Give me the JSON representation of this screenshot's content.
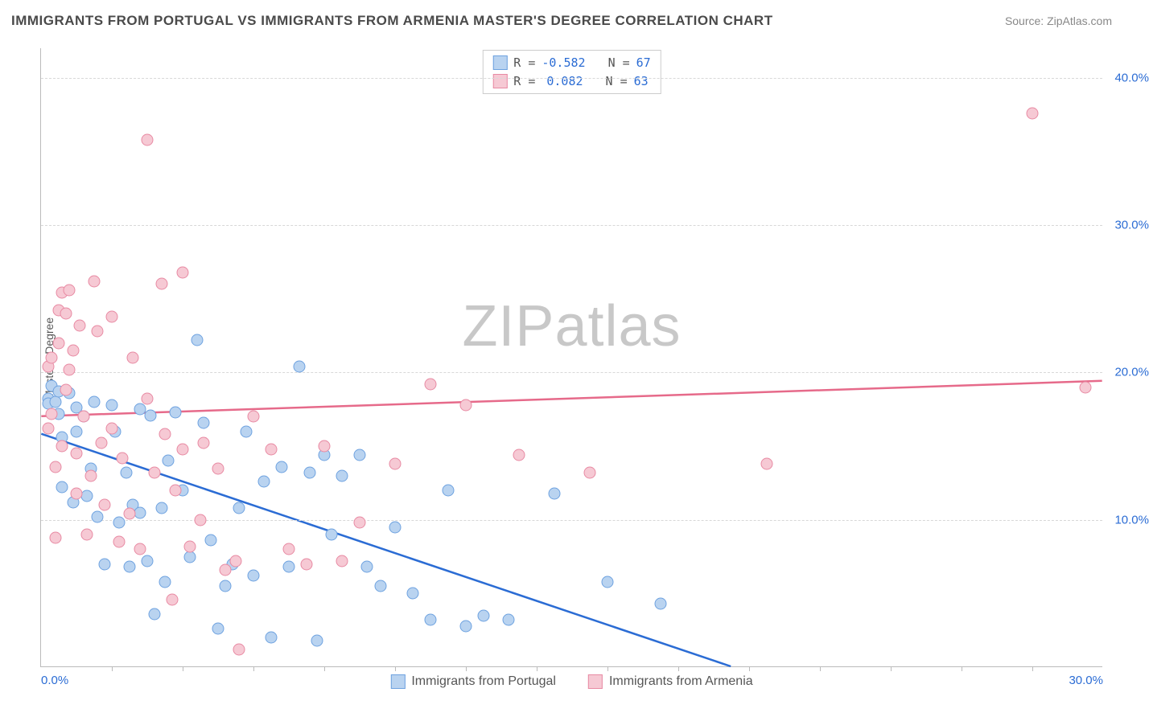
{
  "title": "IMMIGRANTS FROM PORTUGAL VS IMMIGRANTS FROM ARMENIA MASTER'S DEGREE CORRELATION CHART",
  "source": "Source: ZipAtlas.com",
  "watermark": "ZIPatlas",
  "chart": {
    "type": "scatter",
    "xlim": [
      0,
      30
    ],
    "ylim": [
      0,
      42
    ],
    "xticks": [
      0.0,
      30.0
    ],
    "xtick_labels": [
      "0.0%",
      "30.0%"
    ],
    "xtick_minor": [
      2,
      4,
      6,
      8,
      10,
      12,
      14,
      16,
      18,
      20,
      22,
      24,
      26,
      28
    ],
    "yticks": [
      10.0,
      20.0,
      30.0,
      40.0
    ],
    "ytick_labels": [
      "10.0%",
      "20.0%",
      "30.0%",
      "40.0%"
    ],
    "ylabel": "Master's Degree",
    "background_color": "#ffffff",
    "grid_color": "#d8d8d8",
    "axis_color": "#bbbbbb",
    "tick_label_color": "#2b6cd4",
    "title_color": "#4a4a4a",
    "title_fontsize": 17,
    "label_fontsize": 14,
    "point_radius": 7.5,
    "series": [
      {
        "name": "Immigrants from Portugal",
        "fill_color": "#b9d3f0",
        "stroke_color": "#6ea2e0",
        "line_color": "#2b6cd4",
        "R": "-0.582",
        "N": "67",
        "trend": {
          "x1": 0,
          "y1": 15.8,
          "x2": 19.5,
          "y2": 0
        },
        "points": [
          [
            0.2,
            18.2
          ],
          [
            0.2,
            17.9
          ],
          [
            0.3,
            19.1
          ],
          [
            0.4,
            18.0
          ],
          [
            0.5,
            17.2
          ],
          [
            0.5,
            18.7
          ],
          [
            0.6,
            15.6
          ],
          [
            0.6,
            12.2
          ],
          [
            0.8,
            18.6
          ],
          [
            0.9,
            11.2
          ],
          [
            1.0,
            16.0
          ],
          [
            1.0,
            17.6
          ],
          [
            1.2,
            17.0
          ],
          [
            1.3,
            11.6
          ],
          [
            1.4,
            13.5
          ],
          [
            1.5,
            18.0
          ],
          [
            1.6,
            10.2
          ],
          [
            1.8,
            7.0
          ],
          [
            2.0,
            17.8
          ],
          [
            2.1,
            16.0
          ],
          [
            2.2,
            9.8
          ],
          [
            2.4,
            13.2
          ],
          [
            2.5,
            6.8
          ],
          [
            2.6,
            11.0
          ],
          [
            2.8,
            17.5
          ],
          [
            2.8,
            10.5
          ],
          [
            3.0,
            7.2
          ],
          [
            3.1,
            17.1
          ],
          [
            3.2,
            3.6
          ],
          [
            3.4,
            10.8
          ],
          [
            3.5,
            5.8
          ],
          [
            3.6,
            14.0
          ],
          [
            3.8,
            17.3
          ],
          [
            4.0,
            12.0
          ],
          [
            4.2,
            7.5
          ],
          [
            4.4,
            22.2
          ],
          [
            4.6,
            16.6
          ],
          [
            4.8,
            8.6
          ],
          [
            5.0,
            2.6
          ],
          [
            5.2,
            5.5
          ],
          [
            5.4,
            7.0
          ],
          [
            5.6,
            10.8
          ],
          [
            5.8,
            16.0
          ],
          [
            6.0,
            6.2
          ],
          [
            6.3,
            12.6
          ],
          [
            6.5,
            2.0
          ],
          [
            6.8,
            13.6
          ],
          [
            7.0,
            6.8
          ],
          [
            7.3,
            20.4
          ],
          [
            7.6,
            13.2
          ],
          [
            7.8,
            1.8
          ],
          [
            8.0,
            14.4
          ],
          [
            8.2,
            9.0
          ],
          [
            8.5,
            13.0
          ],
          [
            9.0,
            14.4
          ],
          [
            9.2,
            6.8
          ],
          [
            9.6,
            5.5
          ],
          [
            10.0,
            9.5
          ],
          [
            10.5,
            5.0
          ],
          [
            11.0,
            3.2
          ],
          [
            11.5,
            12.0
          ],
          [
            12.0,
            2.8
          ],
          [
            12.5,
            3.5
          ],
          [
            13.2,
            3.2
          ],
          [
            14.5,
            11.8
          ],
          [
            16.0,
            5.8
          ],
          [
            17.5,
            4.3
          ]
        ]
      },
      {
        "name": "Immigrants from Armenia",
        "fill_color": "#f6c9d4",
        "stroke_color": "#e88aa3",
        "line_color": "#e66a8a",
        "R": "0.082",
        "N": "63",
        "trend": {
          "x1": 0,
          "y1": 17.0,
          "x2": 30,
          "y2": 19.4
        },
        "points": [
          [
            0.2,
            20.4
          ],
          [
            0.2,
            16.2
          ],
          [
            0.3,
            21.0
          ],
          [
            0.3,
            17.2
          ],
          [
            0.4,
            13.6
          ],
          [
            0.4,
            8.8
          ],
          [
            0.5,
            24.2
          ],
          [
            0.5,
            22.0
          ],
          [
            0.6,
            25.4
          ],
          [
            0.6,
            15.0
          ],
          [
            0.7,
            24.0
          ],
          [
            0.7,
            18.8
          ],
          [
            0.8,
            25.6
          ],
          [
            0.8,
            20.2
          ],
          [
            0.9,
            21.5
          ],
          [
            1.0,
            14.5
          ],
          [
            1.0,
            11.8
          ],
          [
            1.1,
            23.2
          ],
          [
            1.2,
            17.0
          ],
          [
            1.3,
            9.0
          ],
          [
            1.4,
            13.0
          ],
          [
            1.5,
            26.2
          ],
          [
            1.6,
            22.8
          ],
          [
            1.7,
            15.2
          ],
          [
            1.8,
            11.0
          ],
          [
            2.0,
            23.8
          ],
          [
            2.0,
            16.2
          ],
          [
            2.2,
            8.5
          ],
          [
            2.3,
            14.2
          ],
          [
            2.5,
            10.4
          ],
          [
            2.6,
            21.0
          ],
          [
            2.8,
            8.0
          ],
          [
            3.0,
            18.2
          ],
          [
            3.0,
            35.8
          ],
          [
            3.2,
            13.2
          ],
          [
            3.4,
            26.0
          ],
          [
            3.5,
            15.8
          ],
          [
            3.7,
            4.6
          ],
          [
            3.8,
            12.0
          ],
          [
            4.0,
            26.8
          ],
          [
            4.0,
            14.8
          ],
          [
            4.2,
            8.2
          ],
          [
            4.5,
            10.0
          ],
          [
            4.6,
            15.2
          ],
          [
            5.0,
            13.5
          ],
          [
            5.2,
            6.6
          ],
          [
            5.5,
            7.2
          ],
          [
            5.6,
            1.2
          ],
          [
            6.0,
            17.0
          ],
          [
            6.5,
            14.8
          ],
          [
            7.0,
            8.0
          ],
          [
            7.5,
            7.0
          ],
          [
            8.0,
            15.0
          ],
          [
            8.5,
            7.2
          ],
          [
            9.0,
            9.8
          ],
          [
            10.0,
            13.8
          ],
          [
            11.0,
            19.2
          ],
          [
            12.0,
            17.8
          ],
          [
            13.5,
            14.4
          ],
          [
            15.5,
            13.2
          ],
          [
            20.5,
            13.8
          ],
          [
            28.0,
            37.6
          ],
          [
            29.5,
            19.0
          ]
        ]
      }
    ],
    "legend_top_labels": {
      "R": "R =",
      "N": "N ="
    },
    "legend_bottom_labels": [
      "Immigrants from Portugal",
      "Immigrants from Armenia"
    ]
  }
}
